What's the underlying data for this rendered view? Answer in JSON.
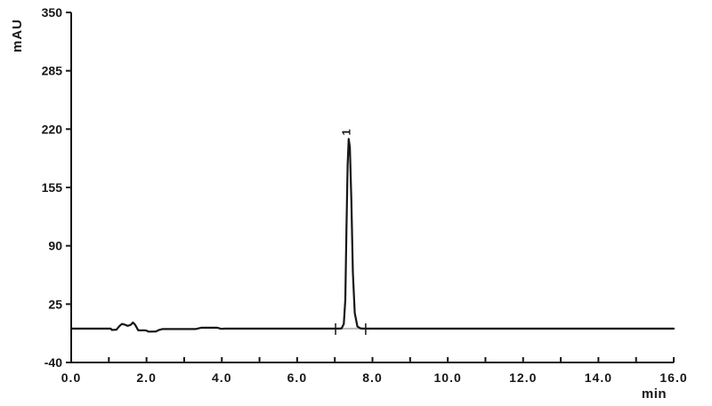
{
  "figure": {
    "background": "#ffffff",
    "axis_color": "#161616",
    "trace_color": "#161616",
    "integration_baseline_color": "#b8b8b8"
  },
  "chart_data": {
    "type": "line",
    "title": "",
    "xlabel": "min",
    "ylabel": "mAU",
    "xlim": [
      0.0,
      16.0
    ],
    "ylim": [
      -40,
      350
    ],
    "grid": false,
    "legend": null,
    "y_ticks": [
      350,
      285,
      220,
      155,
      90,
      25,
      -40
    ],
    "y_tick_labels": [
      "350",
      "285",
      "220",
      "155",
      "90",
      "25",
      "-40"
    ],
    "x_major_ticks": [
      0,
      2,
      4,
      6,
      8,
      10,
      12,
      14,
      16
    ],
    "x_major_tick_labels": [
      "0.0",
      "2.0",
      "4.0",
      "6.0",
      "8.0",
      "10.0",
      "12.0",
      "14.0",
      "16.0"
    ],
    "x_minor_ticks": [
      1,
      3,
      5,
      7,
      9,
      11,
      13,
      15,
      16
    ],
    "baseline_mau": -2.3,
    "series": [
      {
        "name": "detector-signal",
        "points": [
          [
            0,
            -2.3
          ],
          [
            1.05,
            -2.3
          ],
          [
            1.08,
            -3.8
          ],
          [
            1.2,
            -3.5
          ],
          [
            1.28,
            0.5
          ],
          [
            1.35,
            3.0
          ],
          [
            1.42,
            2.2
          ],
          [
            1.5,
            0.8
          ],
          [
            1.58,
            2.0
          ],
          [
            1.64,
            4.5
          ],
          [
            1.7,
            2.0
          ],
          [
            1.78,
            -4.2
          ],
          [
            1.95,
            -4.2
          ],
          [
            2.0,
            -4.5
          ],
          [
            2.05,
            -5.7
          ],
          [
            2.25,
            -5.5
          ],
          [
            2.32,
            -4.0
          ],
          [
            2.42,
            -2.8
          ],
          [
            3.3,
            -2.8
          ],
          [
            3.45,
            -1.3
          ],
          [
            3.88,
            -1.3
          ],
          [
            3.98,
            -2.5
          ],
          [
            4.1,
            -2.3
          ],
          [
            7.1,
            -2.3
          ],
          [
            7.18,
            -2.0
          ],
          [
            7.24,
            3.0
          ],
          [
            7.28,
            30
          ],
          [
            7.31,
            110
          ],
          [
            7.34,
            180
          ],
          [
            7.37,
            209
          ],
          [
            7.4,
            200
          ],
          [
            7.44,
            140
          ],
          [
            7.48,
            60
          ],
          [
            7.53,
            15
          ],
          [
            7.6,
            0
          ],
          [
            7.68,
            -2.0
          ],
          [
            7.75,
            -2.3
          ],
          [
            16.0,
            -2.3
          ]
        ]
      }
    ],
    "peaks": [
      {
        "label": "1",
        "retention_time_min": 7.37,
        "apex_mau": 209,
        "label_rotation_deg": -90
      }
    ],
    "integration_marks_min": [
      7.02,
      7.82
    ]
  }
}
